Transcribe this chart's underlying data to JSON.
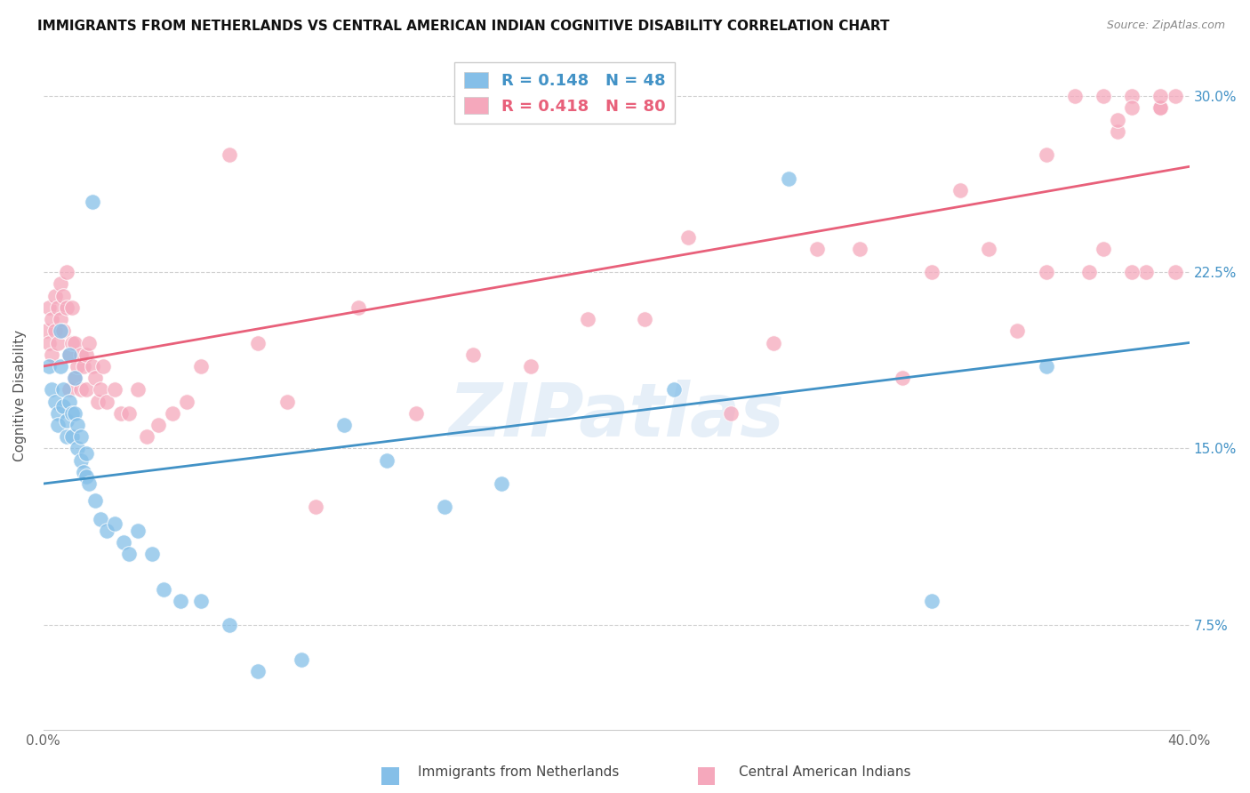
{
  "title": "IMMIGRANTS FROM NETHERLANDS VS CENTRAL AMERICAN INDIAN COGNITIVE DISABILITY CORRELATION CHART",
  "source": "Source: ZipAtlas.com",
  "ylabel": "Cognitive Disability",
  "ytick_labels": [
    "7.5%",
    "15.0%",
    "22.5%",
    "30.0%"
  ],
  "ytick_values": [
    0.075,
    0.15,
    0.225,
    0.3
  ],
  "xlim": [
    0.0,
    0.4
  ],
  "ylim": [
    0.03,
    0.315
  ],
  "color_blue": "#85bfe8",
  "color_pink": "#f5a8bc",
  "trendline1_color": "#4292c6",
  "trendline2_color": "#e8607a",
  "watermark": "ZIPatlas",
  "blue_x": [
    0.002,
    0.003,
    0.004,
    0.005,
    0.005,
    0.006,
    0.006,
    0.007,
    0.007,
    0.008,
    0.008,
    0.009,
    0.009,
    0.01,
    0.01,
    0.011,
    0.011,
    0.012,
    0.012,
    0.013,
    0.013,
    0.014,
    0.015,
    0.015,
    0.016,
    0.017,
    0.018,
    0.02,
    0.022,
    0.025,
    0.028,
    0.03,
    0.033,
    0.038,
    0.042,
    0.048,
    0.055,
    0.065,
    0.075,
    0.09,
    0.105,
    0.12,
    0.14,
    0.16,
    0.22,
    0.26,
    0.31,
    0.35
  ],
  "blue_y": [
    0.185,
    0.175,
    0.17,
    0.165,
    0.16,
    0.2,
    0.185,
    0.175,
    0.168,
    0.162,
    0.155,
    0.19,
    0.17,
    0.165,
    0.155,
    0.18,
    0.165,
    0.16,
    0.15,
    0.155,
    0.145,
    0.14,
    0.148,
    0.138,
    0.135,
    0.255,
    0.128,
    0.12,
    0.115,
    0.118,
    0.11,
    0.105,
    0.115,
    0.105,
    0.09,
    0.085,
    0.085,
    0.075,
    0.055,
    0.06,
    0.16,
    0.145,
    0.125,
    0.135,
    0.175,
    0.265,
    0.085,
    0.185
  ],
  "pink_x": [
    0.001,
    0.002,
    0.002,
    0.003,
    0.003,
    0.004,
    0.004,
    0.005,
    0.005,
    0.006,
    0.006,
    0.007,
    0.007,
    0.008,
    0.008,
    0.009,
    0.009,
    0.01,
    0.01,
    0.011,
    0.011,
    0.012,
    0.013,
    0.013,
    0.014,
    0.015,
    0.015,
    0.016,
    0.017,
    0.018,
    0.019,
    0.02,
    0.021,
    0.022,
    0.025,
    0.027,
    0.03,
    0.033,
    0.036,
    0.04,
    0.045,
    0.05,
    0.055,
    0.065,
    0.075,
    0.085,
    0.095,
    0.11,
    0.13,
    0.15,
    0.17,
    0.19,
    0.21,
    0.225,
    0.24,
    0.255,
    0.27,
    0.285,
    0.3,
    0.31,
    0.32,
    0.33,
    0.34,
    0.35,
    0.36,
    0.365,
    0.37,
    0.375,
    0.38,
    0.385,
    0.39,
    0.39,
    0.395,
    0.395,
    0.37,
    0.375,
    0.35,
    0.38,
    0.38,
    0.39
  ],
  "pink_y": [
    0.2,
    0.21,
    0.195,
    0.205,
    0.19,
    0.215,
    0.2,
    0.21,
    0.195,
    0.22,
    0.205,
    0.215,
    0.2,
    0.225,
    0.21,
    0.19,
    0.175,
    0.21,
    0.195,
    0.195,
    0.18,
    0.185,
    0.175,
    0.19,
    0.185,
    0.19,
    0.175,
    0.195,
    0.185,
    0.18,
    0.17,
    0.175,
    0.185,
    0.17,
    0.175,
    0.165,
    0.165,
    0.175,
    0.155,
    0.16,
    0.165,
    0.17,
    0.185,
    0.275,
    0.195,
    0.17,
    0.125,
    0.21,
    0.165,
    0.19,
    0.185,
    0.205,
    0.205,
    0.24,
    0.165,
    0.195,
    0.235,
    0.235,
    0.18,
    0.225,
    0.26,
    0.235,
    0.2,
    0.225,
    0.3,
    0.225,
    0.235,
    0.285,
    0.3,
    0.225,
    0.295,
    0.295,
    0.225,
    0.3,
    0.3,
    0.29,
    0.275,
    0.225,
    0.295,
    0.3
  ]
}
